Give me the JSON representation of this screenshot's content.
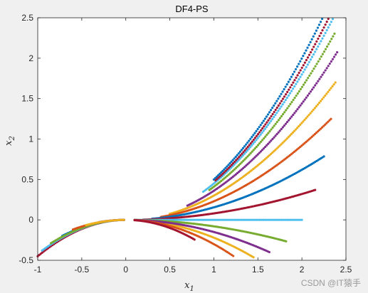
{
  "chart_data": {
    "type": "scatter",
    "title": "DF4-PS",
    "xlabel": "x",
    "xlabel_sub": "1",
    "ylabel": "x",
    "ylabel_sub": "2",
    "xlim": [
      -1,
      2.5
    ],
    "ylim": [
      -0.5,
      2.5
    ],
    "xticks": [
      "-1",
      "-0.5",
      "0",
      "0.5",
      "1",
      "1.5",
      "2",
      "2.5"
    ],
    "yticks": [
      "-0.5",
      "0",
      "0.5",
      "1",
      "1.5",
      "2",
      "2.5"
    ],
    "grid": false,
    "curves": [
      {
        "color": "#0072BD",
        "x0": 1.0,
        "x1": 2.23,
        "center": 0.0,
        "scale": 0.5,
        "offset": 0.0
      },
      {
        "color": "#4DBEEE",
        "x0": 0.88,
        "x1": 2.35,
        "center": 0.0,
        "scale": 0.45,
        "offset": 0.0
      },
      {
        "color": "#A2142F",
        "x0": 1.02,
        "x1": 2.3,
        "center": 0.0,
        "scale": 0.47,
        "offset": 0.0
      },
      {
        "color": "#77AC30",
        "x0": 0.95,
        "x1": 2.37,
        "center": 0.0,
        "scale": 0.41,
        "offset": 0.0
      },
      {
        "color": "#7E2F8E",
        "x0": 0.7,
        "x1": 2.4,
        "center": 0.0,
        "scale": 0.36,
        "offset": 0.0
      },
      {
        "color": "#EDB120",
        "x0": 0.5,
        "x1": 2.38,
        "center": 0.0,
        "scale": 0.3,
        "offset": 0.0
      },
      {
        "color": "#D95319",
        "x0": 0.4,
        "x1": 2.33,
        "center": 0.0,
        "scale": 0.23,
        "offset": 0.0
      },
      {
        "color": "#0072BD",
        "x0": 0.3,
        "x1": 2.25,
        "center": 0.0,
        "scale": 0.155,
        "offset": 0.0
      },
      {
        "color": "#A2142F",
        "x0": 0.2,
        "x1": 2.15,
        "center": 0.0,
        "scale": 0.08,
        "offset": 0.0
      },
      {
        "color": "#4DBEEE",
        "x0": 0.1,
        "x1": 2.0,
        "center": 0.0,
        "scale": 0.0,
        "offset": 0.0
      },
      {
        "color": "#77AC30",
        "x0": 0.1,
        "x1": 1.82,
        "center": 0.0,
        "scale": -0.08,
        "offset": 0.0
      },
      {
        "color": "#EDB120",
        "x0": 0.1,
        "x1": 1.45,
        "center": 0.0,
        "scale": -0.22,
        "offset": 0.0
      },
      {
        "color": "#7E2F8E",
        "x0": 0.1,
        "x1": 1.63,
        "center": 0.0,
        "scale": -0.15,
        "offset": 0.0
      },
      {
        "color": "#D95319",
        "x0": 0.1,
        "x1": 1.22,
        "center": 0.0,
        "scale": -0.3,
        "offset": 0.0
      },
      {
        "color": "#A2142F",
        "x0": 0.1,
        "x1": 0.78,
        "center": 0.0,
        "scale": -0.4,
        "offset": 0.0
      },
      {
        "color": "#A2142F",
        "x0": -1.0,
        "x1": -0.02,
        "center": 0.0,
        "scale": -0.45,
        "offset": 0.0
      },
      {
        "color": "#4DBEEE",
        "x0": -0.95,
        "x1": -0.02,
        "center": 0.0,
        "scale": -0.42,
        "offset": 0.0
      },
      {
        "color": "#0072BD",
        "x0": -0.72,
        "x1": -0.02,
        "center": 0.0,
        "scale": -0.38,
        "offset": 0.0
      },
      {
        "color": "#77AC30",
        "x0": -0.85,
        "x1": -0.02,
        "center": 0.0,
        "scale": -0.4,
        "offset": 0.0
      },
      {
        "color": "#D95319",
        "x0": -0.6,
        "x1": -0.02,
        "center": 0.0,
        "scale": -0.33,
        "offset": 0.0
      },
      {
        "color": "#7E2F8E",
        "x0": -0.3,
        "x1": -0.02,
        "center": 0.0,
        "scale": -0.3,
        "offset": 0.0
      },
      {
        "color": "#EDB120",
        "x0": -0.45,
        "x1": -0.02,
        "center": 0.0,
        "scale": -0.32,
        "offset": 0.0
      }
    ]
  },
  "watermark": "CSDN @IT猿手"
}
